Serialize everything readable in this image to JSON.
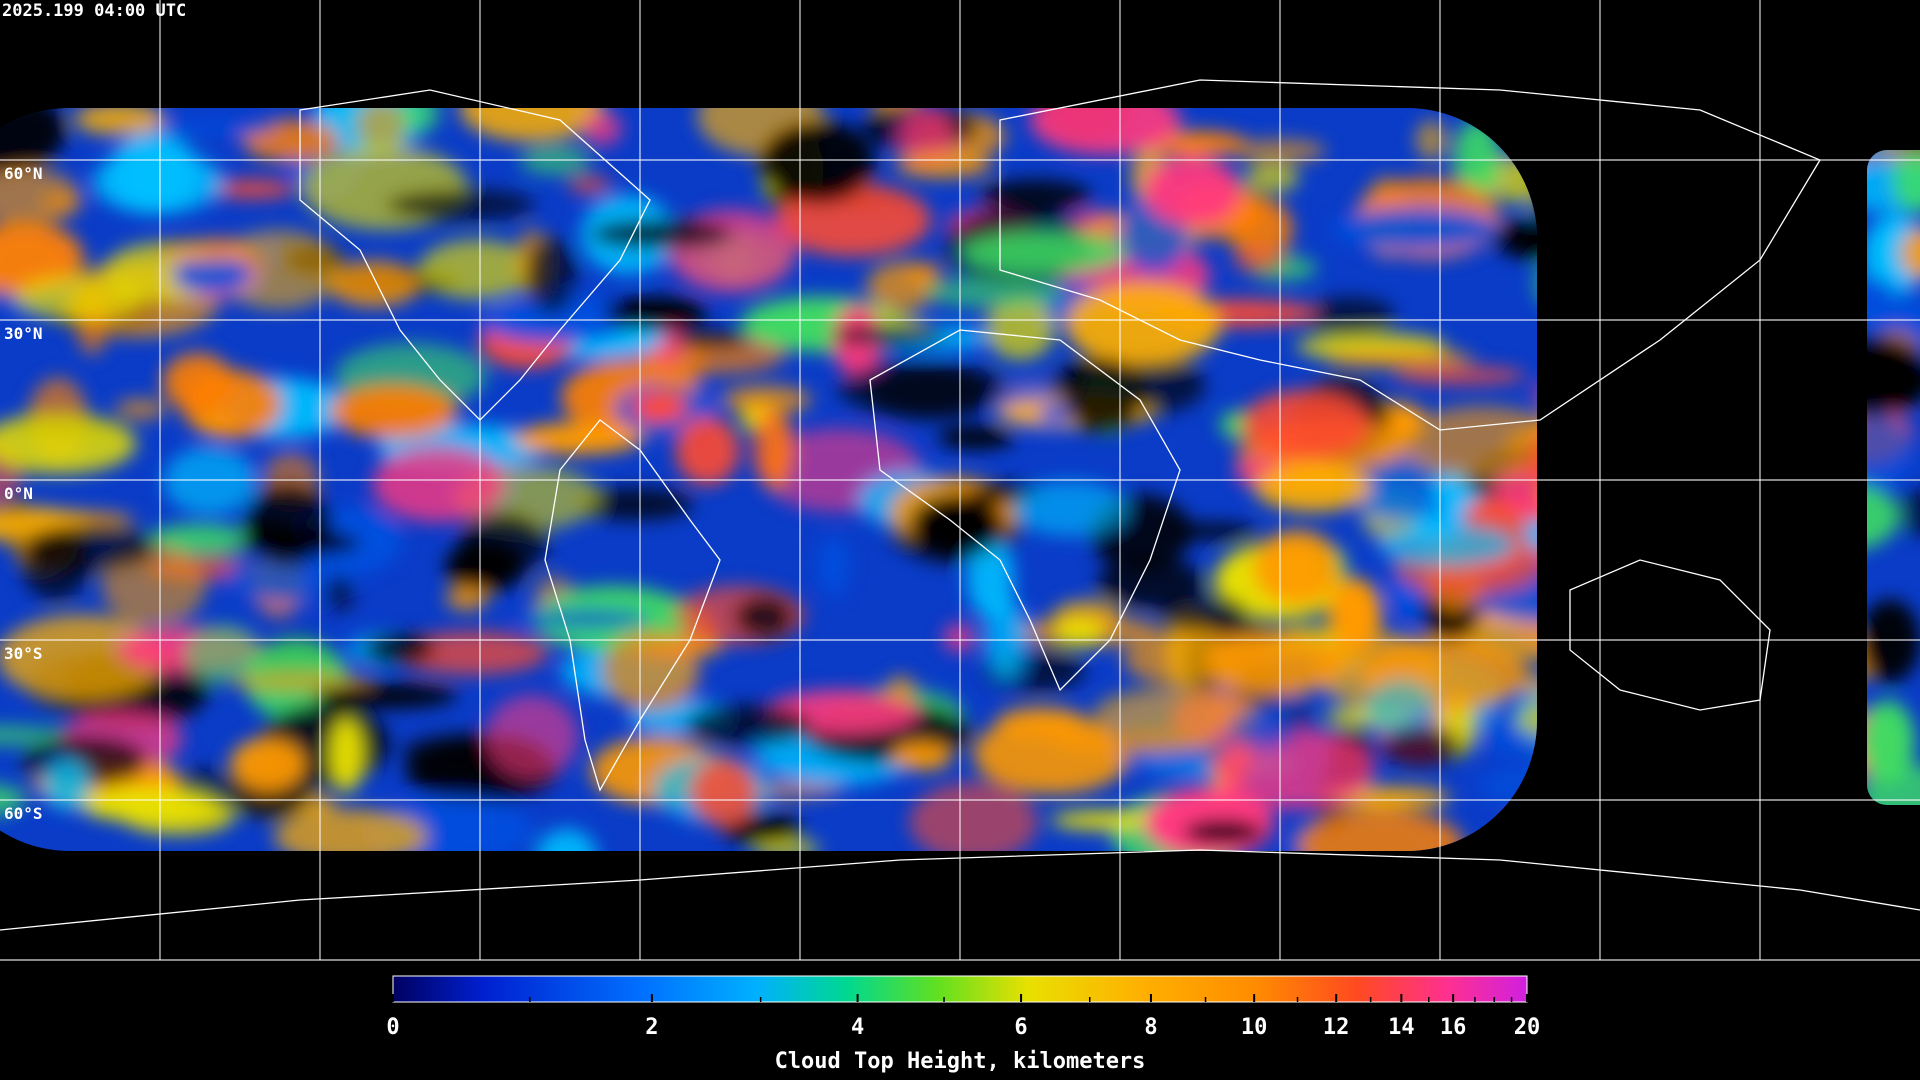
{
  "timestamp": "2025.199 04:00 UTC",
  "map": {
    "latitudes": [
      {
        "value": 60,
        "label": "60°N"
      },
      {
        "value": 30,
        "label": "30°N"
      },
      {
        "value": 0,
        "label": "0°N"
      },
      {
        "value": -30,
        "label": "30°S"
      },
      {
        "value": -60,
        "label": "60°S"
      }
    ]
  },
  "colorbar": {
    "title": "Cloud Top Height, kilometers",
    "lim": [
      0,
      20
    ],
    "ticks": [
      0,
      2,
      4,
      6,
      8,
      10,
      12,
      14,
      16,
      20
    ],
    "minor_ticks": [
      1,
      3,
      5,
      7,
      9,
      11,
      13,
      15,
      17,
      18,
      19
    ]
  }
}
